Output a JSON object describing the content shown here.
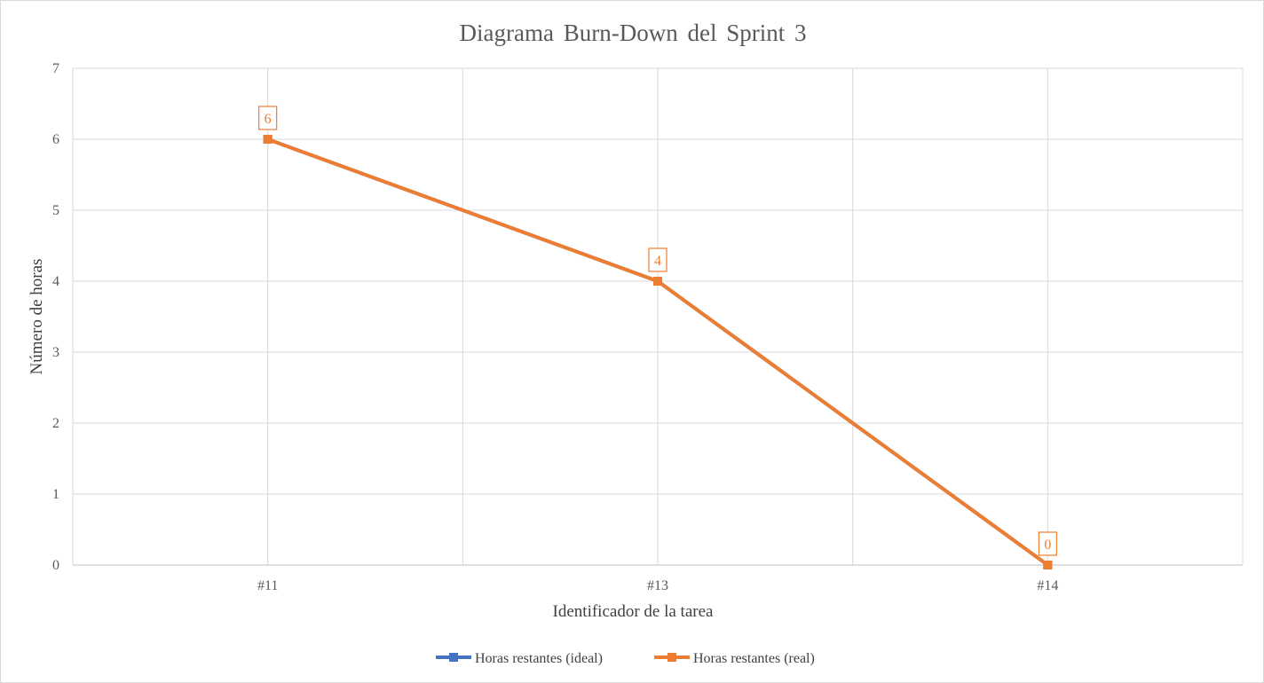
{
  "chart_data": {
    "type": "line",
    "title": "Diagrama Burn-Down del Sprint 3",
    "xlabel": "Identificador de la tarea",
    "ylabel": "Número de horas",
    "categories": [
      "#11",
      "#13",
      "#14"
    ],
    "ylim": [
      0,
      7
    ],
    "yticks": [
      0,
      1,
      2,
      3,
      4,
      5,
      6,
      7
    ],
    "grid": true,
    "legend_position": "bottom",
    "series": [
      {
        "name": "Horas restantes (ideal)",
        "color": "#4472C4",
        "values": [
          6,
          4,
          0
        ],
        "show_labels": false
      },
      {
        "name": "Horas restantes (real)",
        "color": "#ED7D31",
        "values": [
          6,
          4,
          0
        ],
        "show_labels": true
      }
    ]
  }
}
